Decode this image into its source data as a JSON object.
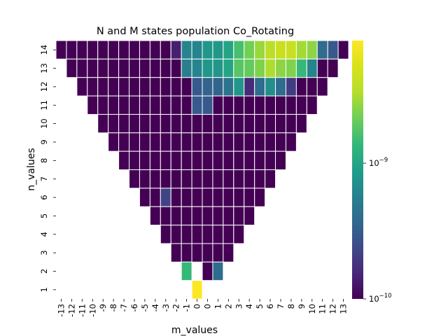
{
  "chart_data": {
    "type": "heatmap",
    "title": "N and M states population Co_Rotating",
    "xlabel": "m_values",
    "ylabel": "n_values",
    "x_ticks": [
      "-13",
      "-12",
      "-11",
      "-10",
      "-9",
      "-8",
      "-7",
      "-6",
      "-5",
      "-4",
      "-3",
      "-2",
      "-1",
      "0",
      "0",
      "1",
      "2",
      "3",
      "4",
      "5",
      "6",
      "7",
      "8",
      "9",
      "10",
      "11",
      "12",
      "13"
    ],
    "y_ticks": [
      "14",
      "13",
      "12",
      "11",
      "10",
      "9",
      "8",
      "7",
      "6",
      "5",
      "4",
      "3",
      "2",
      "1"
    ],
    "color_scale": "log",
    "colormap": "viridis",
    "colorbar": {
      "min": 1e-10,
      "max": 8e-09,
      "ticks": [
        {
          "value": 1e-10,
          "base": "10",
          "exp": "−10"
        },
        {
          "value": 1e-09,
          "base": "10",
          "exp": "−9"
        }
      ]
    },
    "grid_values": [
      [
        1e-10,
        1e-10,
        1e-10,
        1e-10,
        1e-10,
        1e-10,
        1e-10,
        1e-10,
        1e-10,
        1e-10,
        1e-10,
        1.4e-10,
        6e-10,
        6e-10,
        8e-10,
        8e-10,
        1e-09,
        1.6e-09,
        2.2e-09,
        2.8e-09,
        3.6e-09,
        4.2e-09,
        4.2e-09,
        3e-09,
        2.6e-09,
        4e-10,
        3e-10,
        1e-10
      ],
      [
        null,
        1e-10,
        1e-10,
        1e-10,
        1e-10,
        1e-10,
        1e-10,
        1e-10,
        1e-10,
        1e-10,
        1e-10,
        1e-10,
        5.5e-10,
        6e-10,
        8e-10,
        8e-10,
        1e-09,
        1.8e-09,
        2e-09,
        2.4e-09,
        3.2e-09,
        2.6e-09,
        2.4e-09,
        1.4e-09,
        6e-10,
        1e-10,
        1e-10,
        null
      ],
      [
        null,
        null,
        1e-10,
        1e-10,
        1e-10,
        1e-10,
        1e-10,
        1e-10,
        1e-10,
        1e-10,
        1e-10,
        1e-10,
        1e-10,
        3e-10,
        3.5e-10,
        3.5e-10,
        4.5e-10,
        8e-10,
        1.6e-10,
        4e-10,
        7e-10,
        4e-10,
        2e-10,
        1e-10,
        1e-10,
        1e-10,
        null,
        null
      ],
      [
        null,
        null,
        null,
        1e-10,
        1e-10,
        1e-10,
        1e-10,
        1e-10,
        1e-10,
        1e-10,
        1e-10,
        1e-10,
        1e-10,
        3e-10,
        3e-10,
        1e-10,
        1e-10,
        1e-10,
        1e-10,
        1e-10,
        1e-10,
        1e-10,
        1e-10,
        1e-10,
        1e-10,
        null,
        null,
        null
      ],
      [
        null,
        null,
        null,
        null,
        1e-10,
        1e-10,
        1e-10,
        1e-10,
        1e-10,
        1e-10,
        1e-10,
        1e-10,
        1e-10,
        1e-10,
        1e-10,
        1e-10,
        1e-10,
        1e-10,
        1e-10,
        1e-10,
        1e-10,
        1e-10,
        1e-10,
        1e-10,
        null,
        null,
        null,
        null
      ],
      [
        null,
        null,
        null,
        null,
        null,
        1e-10,
        1e-10,
        1e-10,
        1e-10,
        1e-10,
        1e-10,
        1e-10,
        1e-10,
        1e-10,
        1e-10,
        1e-10,
        1e-10,
        1e-10,
        1e-10,
        1e-10,
        1e-10,
        1e-10,
        1e-10,
        null,
        null,
        null,
        null,
        null
      ],
      [
        null,
        null,
        null,
        null,
        null,
        null,
        1e-10,
        1e-10,
        1e-10,
        1e-10,
        1e-10,
        1e-10,
        1e-10,
        1e-10,
        1e-10,
        1e-10,
        1e-10,
        1e-10,
        1e-10,
        1e-10,
        1e-10,
        1e-10,
        null,
        null,
        null,
        null,
        null,
        null
      ],
      [
        null,
        null,
        null,
        null,
        null,
        null,
        null,
        1e-10,
        1e-10,
        1e-10,
        1e-10,
        1e-10,
        1e-10,
        1e-10,
        1e-10,
        1e-10,
        1e-10,
        1e-10,
        1e-10,
        1e-10,
        1e-10,
        null,
        null,
        null,
        null,
        null,
        null,
        null
      ],
      [
        null,
        null,
        null,
        null,
        null,
        null,
        null,
        null,
        1e-10,
        1e-10,
        2.2e-10,
        1e-10,
        1e-10,
        1e-10,
        1e-10,
        1e-10,
        1e-10,
        1e-10,
        1e-10,
        1e-10,
        null,
        null,
        null,
        null,
        null,
        null,
        null,
        null
      ],
      [
        null,
        null,
        null,
        null,
        null,
        null,
        null,
        null,
        null,
        1e-10,
        1e-10,
        1e-10,
        1e-10,
        1e-10,
        1e-10,
        1e-10,
        1e-10,
        1e-10,
        1e-10,
        null,
        null,
        null,
        null,
        null,
        null,
        null,
        null,
        null
      ],
      [
        null,
        null,
        null,
        null,
        null,
        null,
        null,
        null,
        null,
        null,
        1e-10,
        1e-10,
        1e-10,
        1e-10,
        1e-10,
        1e-10,
        1e-10,
        1e-10,
        null,
        null,
        null,
        null,
        null,
        null,
        null,
        null,
        null,
        null
      ],
      [
        null,
        null,
        null,
        null,
        null,
        null,
        null,
        null,
        null,
        null,
        null,
        1e-10,
        1e-10,
        1e-10,
        1e-10,
        1e-10,
        1e-10,
        null,
        null,
        null,
        null,
        null,
        null,
        null,
        null,
        null,
        null,
        null
      ],
      [
        null,
        null,
        null,
        null,
        null,
        null,
        null,
        null,
        null,
        null,
        null,
        null,
        1.4e-09,
        null,
        1e-10,
        4e-10,
        null,
        null,
        null,
        null,
        null,
        null,
        null,
        null,
        null,
        null,
        null,
        null
      ],
      [
        null,
        null,
        null,
        null,
        null,
        null,
        null,
        null,
        null,
        null,
        null,
        null,
        null,
        8e-09,
        null,
        null,
        null,
        null,
        null,
        null,
        null,
        null,
        null,
        null,
        null,
        null,
        null,
        null
      ]
    ]
  }
}
